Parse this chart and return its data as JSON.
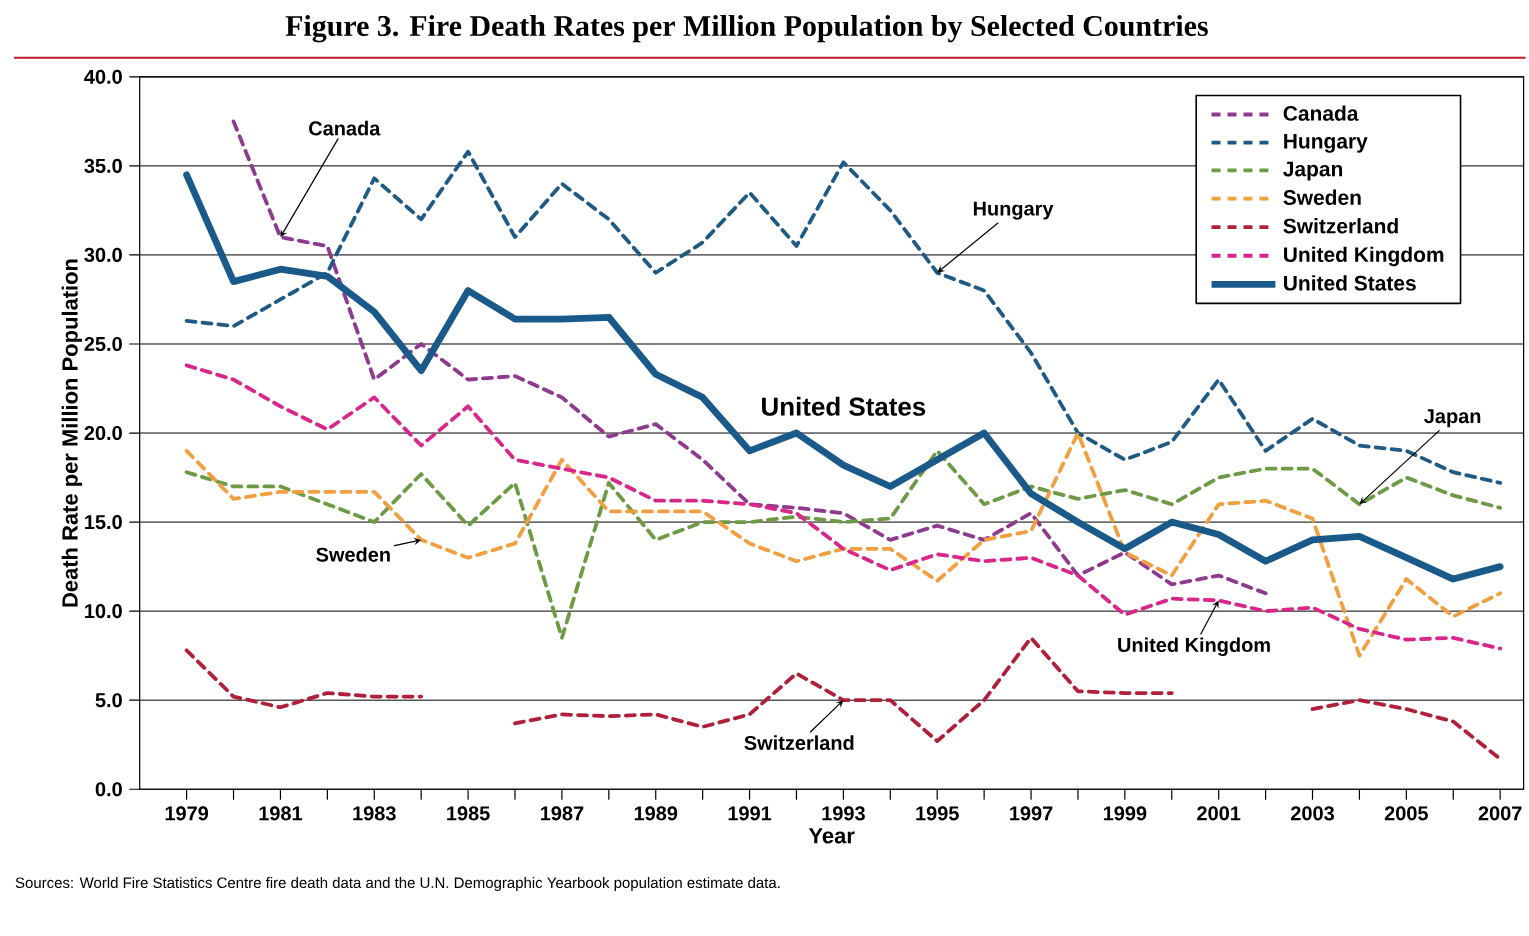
{
  "chart_data": {
    "type": "line",
    "title": "Figure 3. Fire Death Rates per Million Population by Selected Countries",
    "xlabel": "Year",
    "ylabel": "Death Rate per Million Population",
    "x": [
      1979,
      1980,
      1981,
      1982,
      1983,
      1984,
      1985,
      1986,
      1987,
      1988,
      1989,
      1990,
      1991,
      1992,
      1993,
      1994,
      1995,
      1996,
      1997,
      1998,
      1999,
      2000,
      2001,
      2002,
      2003,
      2004,
      2005,
      2006,
      2007
    ],
    "series": [
      {
        "name": "Canada",
        "color": "#8e3a8e",
        "line_style": "dashed",
        "values": [
          null,
          37.5,
          31.0,
          30.5,
          23.0,
          25.0,
          23.0,
          23.2,
          22.0,
          19.8,
          20.5,
          18.5,
          16.0,
          15.8,
          15.5,
          14.0,
          14.8,
          14.0,
          15.5,
          12.0,
          13.3,
          11.5,
          12.0,
          11.0,
          null,
          null,
          null,
          null,
          null
        ]
      },
      {
        "name": "Hungary",
        "color": "#1f5a85",
        "line_style": "dashed",
        "values": [
          26.3,
          26.0,
          27.5,
          29.0,
          34.3,
          32.0,
          35.8,
          31.0,
          34.0,
          32.0,
          29.0,
          30.7,
          33.5,
          30.5,
          35.2,
          32.5,
          29.0,
          28.0,
          24.5,
          20.0,
          18.5,
          19.5,
          23.0,
          19.0,
          20.8,
          19.3,
          19.0,
          17.8,
          17.2
        ]
      },
      {
        "name": "Japan",
        "color": "#6e9a45",
        "line_style": "dashed",
        "values": [
          17.8,
          17.0,
          17.0,
          16.0,
          15.0,
          17.7,
          14.8,
          17.2,
          8.5,
          17.2,
          14.0,
          15.0,
          15.0,
          15.3,
          15.0,
          15.2,
          19.0,
          16.0,
          17.0,
          16.3,
          16.8,
          16.0,
          17.5,
          18.0,
          18.0,
          16.0,
          17.5,
          16.5,
          15.8
        ]
      },
      {
        "name": "Sweden",
        "color": "#f0a040",
        "line_style": "dashed",
        "values": [
          19.0,
          16.3,
          16.7,
          16.7,
          16.7,
          14.0,
          13.0,
          13.8,
          18.5,
          15.6,
          15.6,
          15.6,
          13.8,
          12.8,
          13.5,
          13.5,
          11.7,
          14.0,
          14.5,
          20.0,
          13.3,
          12.0,
          16.0,
          16.2,
          15.2,
          7.5,
          11.8,
          9.7,
          11.0
        ]
      },
      {
        "name": "Switzerland",
        "color": "#b0203a",
        "line_style": "dashed",
        "values": [
          7.8,
          5.2,
          4.6,
          5.4,
          5.2,
          5.2,
          null,
          3.7,
          4.2,
          4.1,
          4.2,
          3.5,
          4.2,
          6.5,
          5.0,
          5.0,
          2.7,
          5.0,
          8.5,
          5.5,
          5.4,
          5.4,
          null,
          null,
          4.5,
          5.0,
          4.5,
          3.8,
          1.7
        ]
      },
      {
        "name": "United Kingdom",
        "color": "#d8268a",
        "line_style": "dashed",
        "values": [
          23.8,
          23.0,
          21.5,
          20.2,
          22.0,
          19.3,
          21.5,
          18.5,
          18.0,
          17.5,
          16.2,
          16.2,
          16.0,
          15.5,
          13.5,
          12.3,
          13.2,
          12.8,
          13.0,
          12.0,
          9.8,
          10.7,
          10.6,
          10.0,
          10.2,
          9.0,
          8.4,
          8.5,
          7.9
        ]
      },
      {
        "name": "United States",
        "color": "#1a5a8a",
        "line_style": "solid",
        "values": [
          34.5,
          28.5,
          29.2,
          28.8,
          26.8,
          23.5,
          28.0,
          26.4,
          26.4,
          26.5,
          23.3,
          22.0,
          19.0,
          20.0,
          18.2,
          17.0,
          18.5,
          20.0,
          16.6,
          15.0,
          13.5,
          15.0,
          14.3,
          12.8,
          14.0,
          14.2,
          13.0,
          11.8,
          12.5
        ]
      }
    ],
    "xlim": [
      1978,
      2007.5
    ],
    "ylim": [
      0,
      40
    ],
    "xticks": [
      1979,
      {
        "value": 1980,
        "label": null
      },
      1981,
      {
        "value": 1982,
        "label": null
      },
      1983,
      {
        "value": 1984,
        "label": null
      },
      1985,
      {
        "value": 1986,
        "label": null
      },
      1987,
      {
        "value": 1988,
        "label": null
      },
      1989,
      {
        "value": 1990,
        "label": null
      },
      1991,
      {
        "value": 1992,
        "label": null
      },
      1993,
      {
        "value": 1994,
        "label": null
      },
      1995,
      {
        "value": 1996,
        "label": null
      },
      1997,
      {
        "value": 1998,
        "label": null
      },
      1999,
      {
        "value": 2000,
        "label": null
      },
      2001,
      {
        "value": 2002,
        "label": null
      },
      2003,
      {
        "value": 2004,
        "label": null
      },
      2005,
      {
        "value": 2006,
        "label": null
      },
      2007
    ],
    "yticks": [
      {
        "value": 0,
        "label": "0.0"
      },
      {
        "value": 5,
        "label": "5.0"
      },
      {
        "value": 10,
        "label": "10.0"
      },
      {
        "value": 15,
        "label": "15.0"
      },
      {
        "value": 20,
        "label": "20.0"
      },
      {
        "value": 25,
        "label": "25.0"
      },
      {
        "value": 30,
        "label": "30.0"
      },
      {
        "value": 35,
        "label": "35.0"
      },
      {
        "value": 40,
        "label": "40.0"
      }
    ],
    "grid": "y",
    "legend": "top right",
    "marker": "none",
    "annotations": [
      {
        "text": "Canada",
        "x": 1981,
        "y": 31.0
      },
      {
        "text": "Hungary",
        "x": 1995,
        "y": 29.0
      },
      "United States",
      {
        "text": "Sweden",
        "x": 1984,
        "y": 14.0
      },
      {
        "text": "Switzerland",
        "x": 1993,
        "y": 5.0
      },
      {
        "text": "United Kingdom",
        "x": 2001,
        "y": 10.6
      },
      {
        "text": "Japan",
        "x": 2004,
        "y": 16.0
      },
      "Sources:  World Fire Statistics Centre fire death data and the U.N. Demographic Yearbook population estimate data."
    ]
  }
}
